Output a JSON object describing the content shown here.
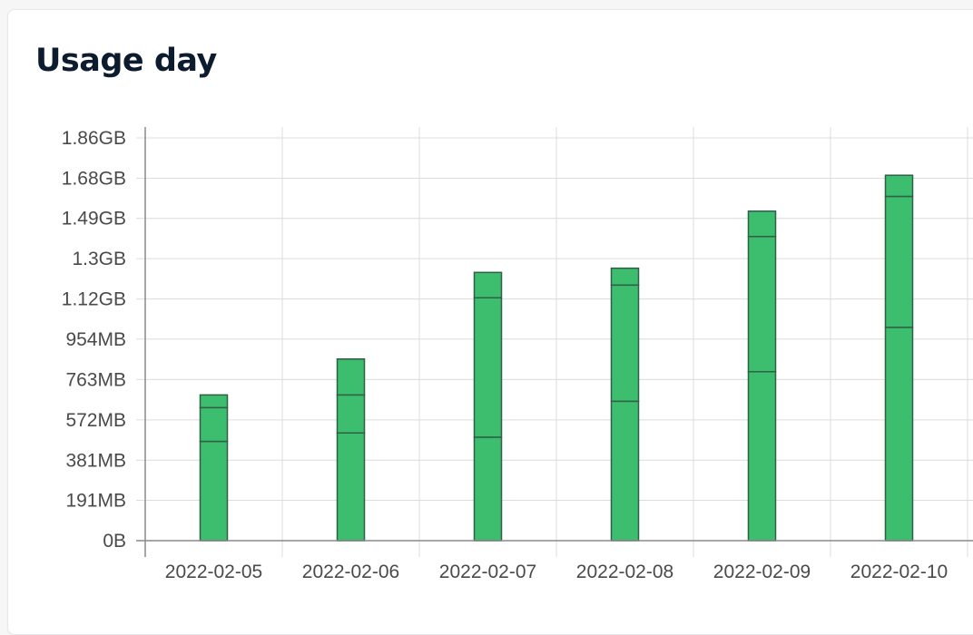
{
  "card": {
    "title": "Usage day"
  },
  "colors": {
    "bar_fill": "#3dbd6e",
    "bar_stroke": "#2f5f45",
    "grid": "#dcdcdc",
    "axis": "#8a8a8a",
    "title": "#0c1b2e"
  },
  "chart_data": {
    "type": "bar",
    "stacked": true,
    "title": "Usage day",
    "xlabel": "",
    "ylabel": "",
    "categories": [
      "2022-02-05",
      "2022-02-06",
      "2022-02-07",
      "2022-02-08",
      "2022-02-09",
      "2022-02-10"
    ],
    "y_unit": "MB",
    "ylim": [
      0,
      1907
    ],
    "y_ticks": [
      0,
      191,
      381,
      572,
      763,
      954,
      1144,
      1335,
      1526,
      1716,
      1907
    ],
    "y_tick_labels": [
      "0B",
      "191MB",
      "381MB",
      "572MB",
      "763MB",
      "954MB",
      "1.12GB",
      "1.3GB",
      "1.49GB",
      "1.68GB",
      "1.86GB"
    ],
    "grid": true,
    "legend": "none",
    "series": [
      {
        "values": [
          470,
          510,
          490,
          660,
          800,
          1010
        ]
      },
      {
        "values": [
          160,
          180,
          660,
          550,
          640,
          620
        ]
      },
      {
        "values": [
          60,
          170,
          120,
          80,
          120,
          100
        ]
      }
    ]
  }
}
